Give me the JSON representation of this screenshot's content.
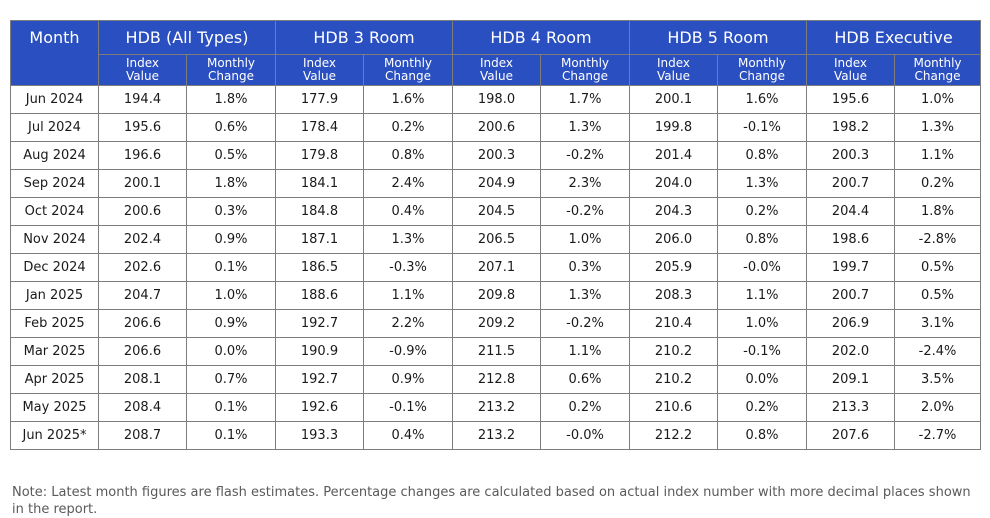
{
  "table": {
    "month_header": "Month",
    "groups": [
      "HDB (All Types)",
      "HDB 3 Room",
      "HDB 4 Room",
      "HDB 5 Room",
      "HDB Executive"
    ],
    "sub_headers": {
      "index": "Index\nValue",
      "change": "Monthly\nChange"
    },
    "rows": [
      {
        "month": "Jun 2024",
        "cells": [
          "194.4",
          "1.8%",
          "177.9",
          "1.6%",
          "198.0",
          "1.7%",
          "200.1",
          "1.6%",
          "195.6",
          "1.0%"
        ]
      },
      {
        "month": "Jul 2024",
        "cells": [
          "195.6",
          "0.6%",
          "178.4",
          "0.2%",
          "200.6",
          "1.3%",
          "199.8",
          "-0.1%",
          "198.2",
          "1.3%"
        ]
      },
      {
        "month": "Aug 2024",
        "cells": [
          "196.6",
          "0.5%",
          "179.8",
          "0.8%",
          "200.3",
          "-0.2%",
          "201.4",
          "0.8%",
          "200.3",
          "1.1%"
        ]
      },
      {
        "month": "Sep 2024",
        "cells": [
          "200.1",
          "1.8%",
          "184.1",
          "2.4%",
          "204.9",
          "2.3%",
          "204.0",
          "1.3%",
          "200.7",
          "0.2%"
        ]
      },
      {
        "month": "Oct 2024",
        "cells": [
          "200.6",
          "0.3%",
          "184.8",
          "0.4%",
          "204.5",
          "-0.2%",
          "204.3",
          "0.2%",
          "204.4",
          "1.8%"
        ]
      },
      {
        "month": "Nov 2024",
        "cells": [
          "202.4",
          "0.9%",
          "187.1",
          "1.3%",
          "206.5",
          "1.0%",
          "206.0",
          "0.8%",
          "198.6",
          "-2.8%"
        ]
      },
      {
        "month": "Dec 2024",
        "cells": [
          "202.6",
          "0.1%",
          "186.5",
          "-0.3%",
          "207.1",
          "0.3%",
          "205.9",
          "-0.0%",
          "199.7",
          "0.5%"
        ]
      },
      {
        "month": "Jan 2025",
        "cells": [
          "204.7",
          "1.0%",
          "188.6",
          "1.1%",
          "209.8",
          "1.3%",
          "208.3",
          "1.1%",
          "200.7",
          "0.5%"
        ]
      },
      {
        "month": "Feb 2025",
        "cells": [
          "206.6",
          "0.9%",
          "192.7",
          "2.2%",
          "209.2",
          "-0.2%",
          "210.4",
          "1.0%",
          "206.9",
          "3.1%"
        ]
      },
      {
        "month": "Mar 2025",
        "cells": [
          "206.6",
          "0.0%",
          "190.9",
          "-0.9%",
          "211.5",
          "1.1%",
          "210.2",
          "-0.1%",
          "202.0",
          "-2.4%"
        ]
      },
      {
        "month": "Apr 2025",
        "cells": [
          "208.1",
          "0.7%",
          "192.7",
          "0.9%",
          "212.8",
          "0.6%",
          "210.2",
          "0.0%",
          "209.1",
          "3.5%"
        ]
      },
      {
        "month": "May 2025",
        "cells": [
          "208.4",
          "0.1%",
          "192.6",
          "-0.1%",
          "213.2",
          "0.2%",
          "210.6",
          "0.2%",
          "213.3",
          "2.0%"
        ]
      },
      {
        "month": "Jun 2025*",
        "cells": [
          "208.7",
          "0.1%",
          "193.3",
          "0.4%",
          "213.2",
          "-0.0%",
          "212.2",
          "0.8%",
          "207.6",
          "-2.7%"
        ]
      }
    ]
  },
  "note": "Note: Latest month figures are flash estimates. Percentage changes are calculated based on actual index number with more decimal places shown in the report."
}
